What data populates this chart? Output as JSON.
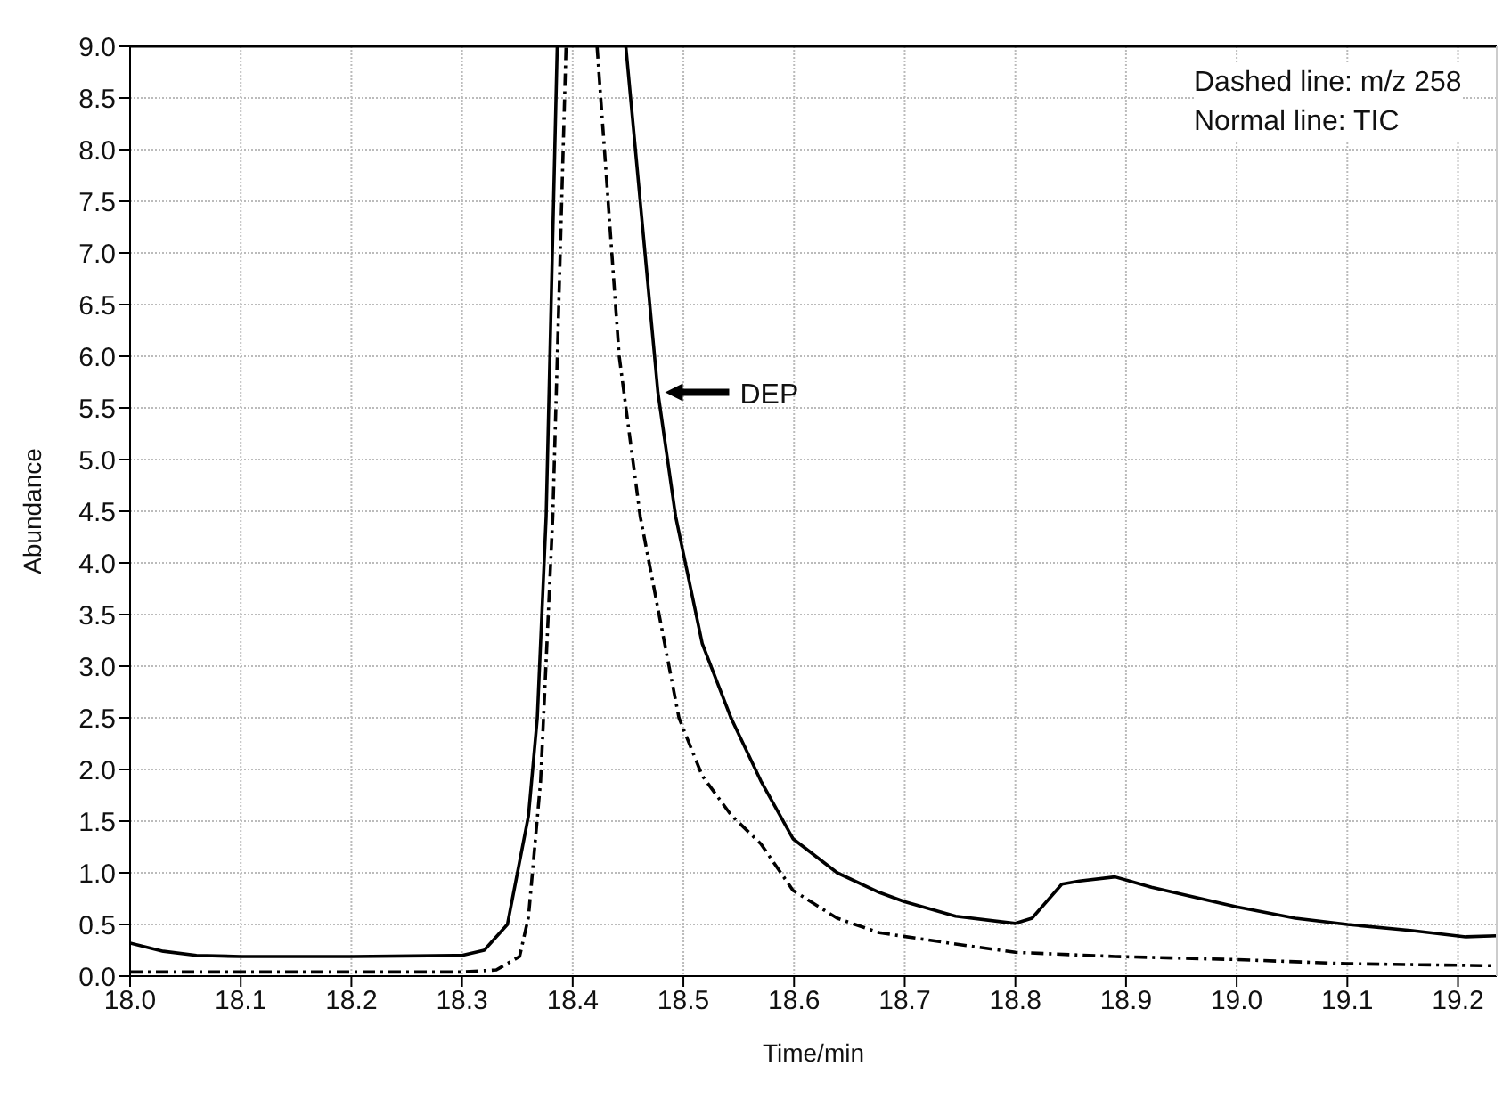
{
  "chart_data": {
    "type": "line",
    "xlabel": "Time/min",
    "ylabel": "Abundance",
    "xlim": [
      18.0,
      19.235
    ],
    "ylim": [
      0,
      9
    ],
    "xticks": [
      {
        "value": 18,
        "label": "18.0"
      },
      18.1,
      18.2,
      18.3,
      18.4,
      18.5,
      18.6,
      18.7,
      18.8,
      18.9,
      {
        "value": 19,
        "label": "19.0"
      },
      19.1,
      19.2
    ],
    "yticks": [
      {
        "value": 0,
        "label": "0.0"
      },
      0.5,
      {
        "value": 1,
        "label": "1.0"
      },
      1.5,
      {
        "value": 2,
        "label": "2.0"
      },
      2.5,
      {
        "value": 3,
        "label": "3.0"
      },
      3.5,
      {
        "value": 4,
        "label": "4.0"
      },
      4.5,
      {
        "value": 5,
        "label": "5.0"
      },
      5.5,
      {
        "value": 6,
        "label": "6.0"
      },
      6.5,
      {
        "value": 7,
        "label": "7.0"
      },
      7.5,
      {
        "value": 8,
        "label": "8.0"
      },
      8.5,
      {
        "value": 9,
        "label": "9.0"
      }
    ],
    "grid": true,
    "marker": "none",
    "series": [
      {
        "color": "#000000",
        "line_style": "solid",
        "x": [
          18.0,
          18.03,
          18.06,
          18.1,
          18.2,
          18.3,
          18.32,
          18.341,
          18.36,
          18.368,
          18.376,
          18.386,
          18.42,
          18.448,
          18.477,
          18.493,
          18.517,
          18.543,
          18.57,
          18.599,
          18.639,
          18.677,
          18.7,
          18.746,
          18.8,
          18.815,
          18.842,
          18.858,
          18.89,
          18.923,
          19.0,
          19.053,
          19.1,
          19.159,
          19.207,
          19.235
        ],
        "values": [
          0.32,
          0.24,
          0.2,
          0.19,
          0.19,
          0.2,
          0.25,
          0.5,
          1.55,
          2.5,
          4.45,
          9.0,
          null,
          9.0,
          5.65,
          4.45,
          3.22,
          2.5,
          1.89,
          1.33,
          1.0,
          0.81,
          0.72,
          0.58,
          0.51,
          0.56,
          0.89,
          0.92,
          0.96,
          0.86,
          0.67,
          0.56,
          0.5,
          0.44,
          0.38,
          0.39
        ]
      },
      {
        "color": "#000000",
        "line_style": "dashed",
        "x": [
          18.0,
          18.1,
          18.2,
          18.3,
          18.331,
          18.352,
          18.36,
          18.371,
          18.382,
          18.394,
          18.41,
          18.422,
          18.442,
          18.461,
          18.496,
          18.517,
          18.543,
          18.57,
          18.599,
          18.639,
          18.677,
          18.746,
          18.8,
          18.89,
          19.0,
          19.1,
          19.235
        ],
        "values": [
          0.04,
          0.04,
          0.04,
          0.04,
          0.06,
          0.19,
          0.57,
          1.89,
          4.45,
          9.0,
          null,
          9.0,
          6.0,
          4.45,
          2.5,
          1.94,
          1.56,
          1.28,
          0.83,
          0.56,
          0.42,
          0.31,
          0.23,
          0.19,
          0.16,
          0.12,
          0.1
        ]
      }
    ],
    "annotations": [
      "Dashed line: m/z 258",
      "Normal line: TIC",
      {
        "text": "DEP",
        "x": 18.477,
        "y": 5.65
      }
    ]
  }
}
